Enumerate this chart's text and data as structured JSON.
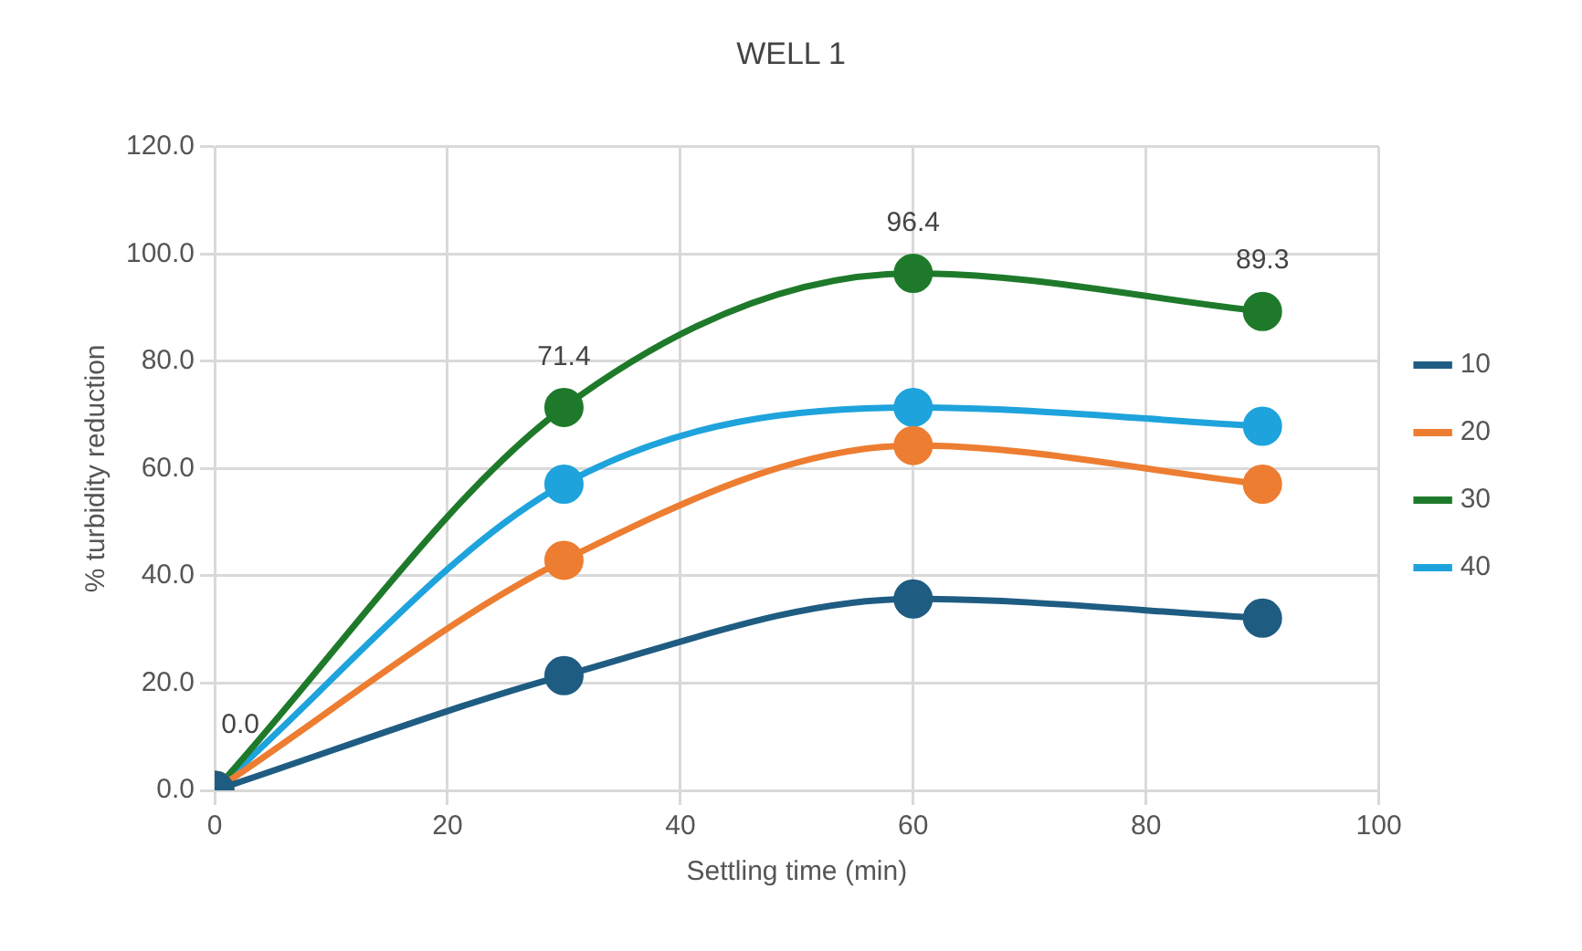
{
  "chart_data": {
    "type": "line",
    "title": "WELL 1",
    "xlabel": "Settling time (min)",
    "ylabel": "% turbidity reduction",
    "x": [
      0,
      30,
      60,
      90
    ],
    "series": [
      {
        "name": "10",
        "color": "#1f5c82",
        "values": [
          0,
          21.4,
          35.7,
          32.1
        ]
      },
      {
        "name": "20",
        "color": "#ed7d31",
        "values": [
          0,
          42.9,
          64.3,
          57.1
        ]
      },
      {
        "name": "30",
        "color": "#1e7a2a",
        "values": [
          0,
          71.4,
          96.4,
          89.3
        ],
        "value_labels": [
          "0.0",
          "71.4",
          "96.4",
          "89.3"
        ]
      },
      {
        "name": "40",
        "color": "#1ea3dc",
        "values": [
          0,
          57.1,
          71.4,
          67.9
        ]
      }
    ],
    "xlim": [
      0,
      100
    ],
    "xticks": [
      0,
      20,
      40,
      60,
      80,
      100
    ],
    "ylim": [
      0,
      120
    ],
    "yticks": [
      {
        "value": 0,
        "label": "0.0"
      },
      {
        "value": 20,
        "label": "20.0"
      },
      {
        "value": 40,
        "label": "40.0"
      },
      {
        "value": 60,
        "label": "60.0"
      },
      {
        "value": 80,
        "label": "80.0"
      },
      {
        "value": 100,
        "label": "100.0"
      },
      {
        "value": 120,
        "label": "120.0"
      }
    ],
    "grid": true,
    "legend": "right",
    "marker": "circle",
    "line_style": "solid"
  }
}
